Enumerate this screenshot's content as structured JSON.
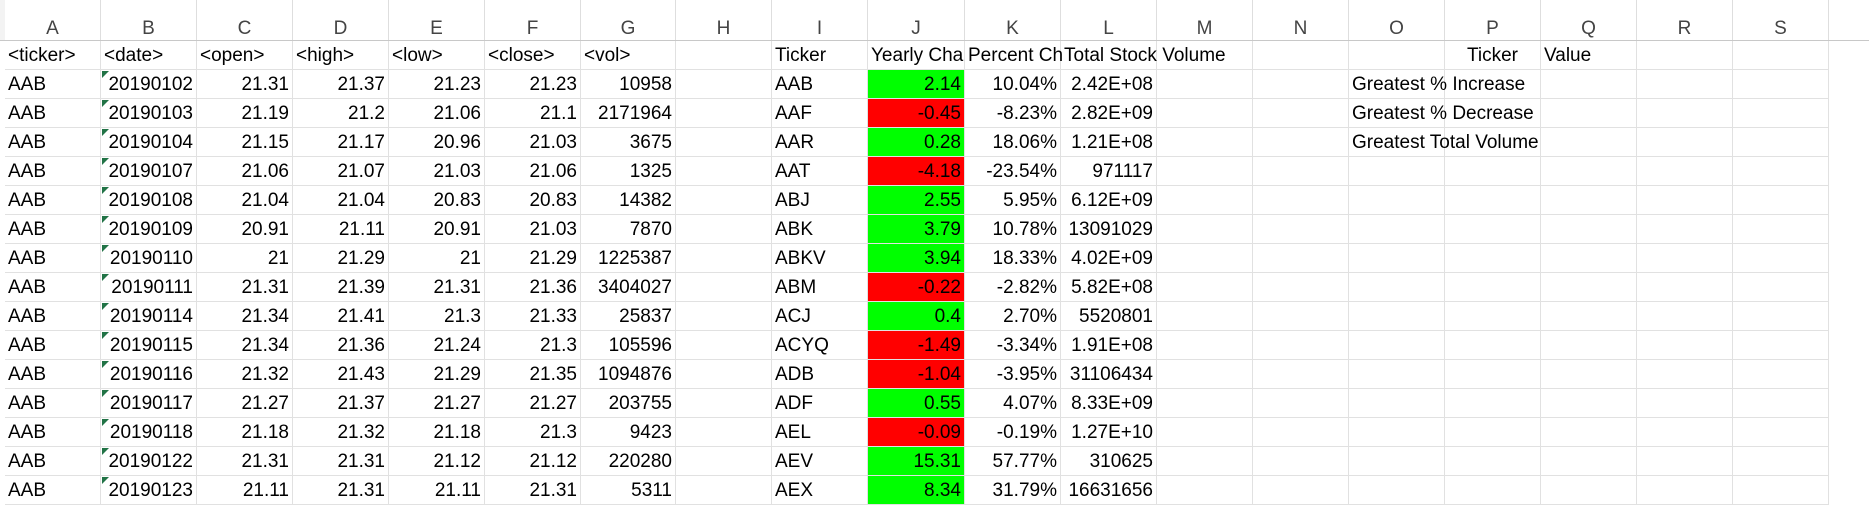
{
  "columns": [
    "A",
    "B",
    "C",
    "D",
    "E",
    "F",
    "G",
    "H",
    "I",
    "J",
    "K",
    "L",
    "M",
    "N",
    "O",
    "P",
    "Q",
    "R",
    "S"
  ],
  "raw_headers": [
    "<ticker>",
    "<date>",
    "<open>",
    "<high>",
    "<low>",
    "<close>",
    "<vol>"
  ],
  "raw_rows": [
    [
      "AAB",
      "20190102",
      "21.31",
      "21.37",
      "21.23",
      "21.23",
      "10958"
    ],
    [
      "AAB",
      "20190103",
      "21.19",
      "21.2",
      "21.06",
      "21.1",
      "2171964"
    ],
    [
      "AAB",
      "20190104",
      "21.15",
      "21.17",
      "20.96",
      "21.03",
      "3675"
    ],
    [
      "AAB",
      "20190107",
      "21.06",
      "21.07",
      "21.03",
      "21.06",
      "1325"
    ],
    [
      "AAB",
      "20190108",
      "21.04",
      "21.04",
      "20.83",
      "20.83",
      "14382"
    ],
    [
      "AAB",
      "20190109",
      "20.91",
      "21.11",
      "20.91",
      "21.03",
      "7870"
    ],
    [
      "AAB",
      "20190110",
      "21",
      "21.29",
      "21",
      "21.29",
      "1225387"
    ],
    [
      "AAB",
      "20190111",
      "21.31",
      "21.39",
      "21.31",
      "21.36",
      "3404027"
    ],
    [
      "AAB",
      "20190114",
      "21.34",
      "21.41",
      "21.3",
      "21.33",
      "25837"
    ],
    [
      "AAB",
      "20190115",
      "21.34",
      "21.36",
      "21.24",
      "21.3",
      "105596"
    ],
    [
      "AAB",
      "20190116",
      "21.32",
      "21.43",
      "21.29",
      "21.35",
      "1094876"
    ],
    [
      "AAB",
      "20190117",
      "21.27",
      "21.37",
      "21.27",
      "21.27",
      "203755"
    ],
    [
      "AAB",
      "20190118",
      "21.18",
      "21.32",
      "21.18",
      "21.3",
      "9423"
    ],
    [
      "AAB",
      "20190122",
      "21.31",
      "21.31",
      "21.12",
      "21.12",
      "220280"
    ],
    [
      "AAB",
      "20190123",
      "21.11",
      "21.31",
      "21.11",
      "21.31",
      "5311"
    ]
  ],
  "summary_headers": [
    "Ticker",
    "Yearly Cha",
    "Percent Ch",
    "Total Stock Volume"
  ],
  "summary_rows": [
    {
      "ticker": "AAB",
      "change": "2.14",
      "pct": "10.04%",
      "vol": "2.42E+08",
      "status": "pos"
    },
    {
      "ticker": "AAF",
      "change": "-0.45",
      "pct": "-8.23%",
      "vol": "2.82E+09",
      "status": "neg"
    },
    {
      "ticker": "AAR",
      "change": "0.28",
      "pct": "18.06%",
      "vol": "1.21E+08",
      "status": "pos"
    },
    {
      "ticker": "AAT",
      "change": "-4.18",
      "pct": "-23.54%",
      "vol": "971117",
      "status": "neg"
    },
    {
      "ticker": "ABJ",
      "change": "2.55",
      "pct": "5.95%",
      "vol": "6.12E+09",
      "status": "pos"
    },
    {
      "ticker": "ABK",
      "change": "3.79",
      "pct": "10.78%",
      "vol": "13091029",
      "status": "pos"
    },
    {
      "ticker": "ABKV",
      "change": "3.94",
      "pct": "18.33%",
      "vol": "4.02E+09",
      "status": "pos"
    },
    {
      "ticker": "ABM",
      "change": "-0.22",
      "pct": "-2.82%",
      "vol": "5.82E+08",
      "status": "neg"
    },
    {
      "ticker": "ACJ",
      "change": "0.4",
      "pct": "2.70%",
      "vol": "5520801",
      "status": "pos"
    },
    {
      "ticker": "ACYQ",
      "change": "-1.49",
      "pct": "-3.34%",
      "vol": "1.91E+08",
      "status": "neg"
    },
    {
      "ticker": "ADB",
      "change": "-1.04",
      "pct": "-3.95%",
      "vol": "31106434",
      "status": "neg"
    },
    {
      "ticker": "ADF",
      "change": "0.55",
      "pct": "4.07%",
      "vol": "8.33E+09",
      "status": "pos"
    },
    {
      "ticker": "AEL",
      "change": "-0.09",
      "pct": "-0.19%",
      "vol": "1.27E+10",
      "status": "neg"
    },
    {
      "ticker": "AEV",
      "change": "15.31",
      "pct": "57.77%",
      "vol": "310625",
      "status": "pos"
    },
    {
      "ticker": "AEX",
      "change": "8.34",
      "pct": "31.79%",
      "vol": "16631656",
      "status": "pos"
    }
  ],
  "greatest": {
    "ticker_header": "Ticker",
    "value_header": "Value",
    "labels": [
      "Greatest % Increase",
      "Greatest % Decrease",
      "Greatest Total Volume"
    ]
  },
  "colors": {
    "positive": "#00ff00",
    "negative": "#ff0000",
    "error_indicator": "#217346"
  }
}
